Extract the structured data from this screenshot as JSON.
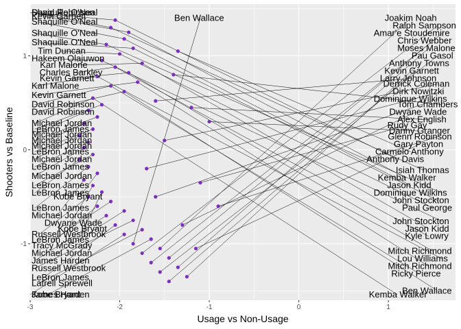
{
  "chart_data": {
    "type": "scatter",
    "title": "",
    "xlabel": "Usage vs Non-Usage",
    "ylabel": "Shooters vs Baseline",
    "xlim": [
      -3.0,
      1.75
    ],
    "ylim": [
      -1.6,
      1.55
    ],
    "x_ticks": [
      -3,
      -2,
      -1,
      0,
      1
    ],
    "y_ticks": [
      -1,
      0,
      1
    ],
    "x_tick_labels": [
      "-3",
      "-2",
      "-1",
      "0",
      "1"
    ],
    "y_tick_labels": [
      "-1",
      "0",
      "1"
    ],
    "grid": true,
    "colors": {
      "panel": "#ebebeb",
      "grid": "#ffffff",
      "point": "#7b2fbf",
      "segment": "#000000"
    },
    "points": [
      {
        "x": -2.05,
        "y": 1.38
      },
      {
        "x": -2.1,
        "y": 1.3
      },
      {
        "x": -1.9,
        "y": 1.25
      },
      {
        "x": -1.95,
        "y": 1.18
      },
      {
        "x": -2.15,
        "y": 1.12
      },
      {
        "x": -1.85,
        "y": 1.08
      },
      {
        "x": -2.0,
        "y": 1.02
      },
      {
        "x": -2.2,
        "y": 0.95
      },
      {
        "x": -1.75,
        "y": 0.92
      },
      {
        "x": -2.05,
        "y": 0.88
      },
      {
        "x": -1.9,
        "y": 0.82
      },
      {
        "x": -2.25,
        "y": 0.78
      },
      {
        "x": -1.8,
        "y": 0.72
      },
      {
        "x": -2.1,
        "y": 0.68
      },
      {
        "x": -1.95,
        "y": 0.62
      },
      {
        "x": -2.3,
        "y": 0.55
      },
      {
        "x": -2.2,
        "y": 0.48
      },
      {
        "x": -2.35,
        "y": 0.42
      },
      {
        "x": -2.25,
        "y": 0.35
      },
      {
        "x": -2.4,
        "y": 0.28
      },
      {
        "x": -2.3,
        "y": 0.22
      },
      {
        "x": -2.45,
        "y": 0.15
      },
      {
        "x": -2.35,
        "y": 0.08
      },
      {
        "x": -2.4,
        "y": 0.02
      },
      {
        "x": -2.3,
        "y": -0.05
      },
      {
        "x": -2.45,
        "y": -0.1
      },
      {
        "x": -2.35,
        "y": -0.18
      },
      {
        "x": -2.25,
        "y": -0.25
      },
      {
        "x": -2.4,
        "y": -0.32
      },
      {
        "x": -2.3,
        "y": -0.38
      },
      {
        "x": -2.2,
        "y": -0.45
      },
      {
        "x": -2.35,
        "y": -0.5
      },
      {
        "x": -2.1,
        "y": -0.55
      },
      {
        "x": -2.25,
        "y": -0.6
      },
      {
        "x": -1.95,
        "y": -0.65
      },
      {
        "x": -2.15,
        "y": -0.7
      },
      {
        "x": -1.85,
        "y": -0.75
      },
      {
        "x": -2.05,
        "y": -0.8
      },
      {
        "x": -1.75,
        "y": -0.85
      },
      {
        "x": -1.95,
        "y": -0.9
      },
      {
        "x": -1.65,
        "y": -0.95
      },
      {
        "x": -1.85,
        "y": -1.0
      },
      {
        "x": -1.55,
        "y": -1.05
      },
      {
        "x": -1.75,
        "y": -1.1
      },
      {
        "x": -1.45,
        "y": -1.15
      },
      {
        "x": -1.65,
        "y": -1.2
      },
      {
        "x": -1.35,
        "y": -1.25
      },
      {
        "x": -1.55,
        "y": -1.3
      },
      {
        "x": -1.25,
        "y": -1.35
      },
      {
        "x": -1.45,
        "y": -1.4
      },
      {
        "x": -1.6,
        "y": 0.52
      },
      {
        "x": -1.5,
        "y": 0.1
      },
      {
        "x": -1.7,
        "y": -0.2
      },
      {
        "x": -1.6,
        "y": -0.5
      },
      {
        "x": -1.4,
        "y": 0.8
      },
      {
        "x": -1.3,
        "y": -0.8
      },
      {
        "x": -1.2,
        "y": 0.45
      },
      {
        "x": -1.1,
        "y": -0.35
      },
      {
        "x": -1.0,
        "y": 0.3
      },
      {
        "x": -0.9,
        "y": -0.6
      },
      {
        "x": -1.15,
        "y": -1.05
      },
      {
        "x": -1.35,
        "y": 1.05
      }
    ],
    "labels": [
      {
        "text": "David Robinson",
        "x": -3.0,
        "y": 1.46
      },
      {
        "text": "Shaquille O'Neal",
        "x": -2.95,
        "y": 1.46
      },
      {
        "text": "Kevin Garnett",
        "x": -2.85,
        "y": 1.42
      },
      {
        "text": "Shaquille O'Neal",
        "x": -2.9,
        "y": 1.36
      },
      {
        "text": "Shaquille O'Neal",
        "x": -2.95,
        "y": 1.24
      },
      {
        "text": "Shaquille O'Neal",
        "x": -2.9,
        "y": 1.14
      },
      {
        "text": "Tim Duncan",
        "x": -2.65,
        "y": 1.05
      },
      {
        "text": "Hakeem Olajuwon",
        "x": -2.75,
        "y": 0.97
      },
      {
        "text": "Karl Malone",
        "x": -2.6,
        "y": 0.9
      },
      {
        "text": "Charles Barkley",
        "x": -2.5,
        "y": 0.82
      },
      {
        "text": "Kevin Garnett",
        "x": -2.55,
        "y": 0.76
      },
      {
        "text": "Karl Malone",
        "x": -2.95,
        "y": 0.68
      },
      {
        "text": "Kevin Garnett",
        "x": -2.95,
        "y": 0.58
      },
      {
        "text": "David Robinson",
        "x": -2.95,
        "y": 0.48
      },
      {
        "text": "David Robinson",
        "x": -2.95,
        "y": 0.4
      },
      {
        "text": "Michael Jordan",
        "x": -2.95,
        "y": 0.28
      },
      {
        "text": "LeBron James",
        "x": -2.95,
        "y": 0.22
      },
      {
        "text": "Michael Jordan",
        "x": -2.95,
        "y": 0.16
      },
      {
        "text": "Michael Jordan",
        "x": -2.95,
        "y": 0.1
      },
      {
        "text": "Michael Jordan",
        "x": -2.95,
        "y": 0.04
      },
      {
        "text": "LeBron James",
        "x": -2.95,
        "y": -0.02
      },
      {
        "text": "Michael Jordan",
        "x": -2.95,
        "y": -0.1
      },
      {
        "text": "LeBron James",
        "x": -2.95,
        "y": -0.18
      },
      {
        "text": "Michael Jordan",
        "x": -2.95,
        "y": -0.28
      },
      {
        "text": "LeBron James",
        "x": -2.95,
        "y": -0.38
      },
      {
        "text": "LeBron James",
        "x": -2.95,
        "y": -0.46
      },
      {
        "text": "LeBron James",
        "x": -2.95,
        "y": -0.62
      },
      {
        "text": "Kobe Bryant",
        "x": -2.45,
        "y": -0.5
      },
      {
        "text": "Michael Jordan",
        "x": -2.7,
        "y": -0.7
      },
      {
        "text": "Dwyane Wade",
        "x": -2.55,
        "y": -0.78
      },
      {
        "text": "Kobe Bryant",
        "x": -2.4,
        "y": -0.84
      },
      {
        "text": "Russell Westbrook",
        "x": -2.9,
        "y": -0.9
      },
      {
        "text": "LeBron James",
        "x": -2.75,
        "y": -0.96
      },
      {
        "text": "Tracy McGrady",
        "x": -2.8,
        "y": -1.02
      },
      {
        "text": "Michael Jordan",
        "x": -2.7,
        "y": -1.1
      },
      {
        "text": "James Harden",
        "x": -2.95,
        "y": -1.18
      },
      {
        "text": "Russell Westbrook",
        "x": -2.95,
        "y": -1.26
      },
      {
        "text": "LeBron James",
        "x": -2.85,
        "y": -1.36
      },
      {
        "text": "Latrell Sprewell",
        "x": -2.9,
        "y": -1.42
      },
      {
        "text": "James Harden",
        "x": -3.0,
        "y": -1.54
      },
      {
        "text": "Kobe Bryant",
        "x": -2.8,
        "y": -1.54
      },
      {
        "text": "Ben Wallace",
        "x": -1.1,
        "y": 1.4
      },
      {
        "text": "Joakim Noah",
        "x": 1.25,
        "y": 1.4
      },
      {
        "text": "Ralph Sampson",
        "x": 1.55,
        "y": 1.32
      },
      {
        "text": "Amar'e Stoudemire",
        "x": 1.6,
        "y": 1.24
      },
      {
        "text": "Chris Webber",
        "x": 1.5,
        "y": 1.16
      },
      {
        "text": "Moses Malone",
        "x": 1.45,
        "y": 1.08
      },
      {
        "text": "Pau Gasol",
        "x": 1.55,
        "y": 1.0
      },
      {
        "text": "Anthony Towns",
        "x": 1.35,
        "y": 0.92
      },
      {
        "text": "Kevin Garnett",
        "x": 1.3,
        "y": 0.84
      },
      {
        "text": "Larry Johnson",
        "x": 1.25,
        "y": 0.76
      },
      {
        "text": "Derrick Coleman",
        "x": 1.55,
        "y": 0.7
      },
      {
        "text": "Dirk Nowitzki",
        "x": 1.6,
        "y": 0.62
      },
      {
        "text": "Dominique Wilkins",
        "x": 1.55,
        "y": 0.54
      },
      {
        "text": "Tom Chambers",
        "x": 1.6,
        "y": 0.48
      },
      {
        "text": "Dwyane Wade",
        "x": 1.3,
        "y": 0.4
      },
      {
        "text": "Alex English",
        "x": 1.45,
        "y": 0.32
      },
      {
        "text": "Rudy Gay",
        "x": 1.2,
        "y": 0.26
      },
      {
        "text": "Danny Granger",
        "x": 1.35,
        "y": 0.2
      },
      {
        "text": "Glenn Robinson",
        "x": 1.55,
        "y": 0.14
      },
      {
        "text": "Gary Payton",
        "x": 1.35,
        "y": 0.06
      },
      {
        "text": "Carmelo Anthony",
        "x": 1.25,
        "y": -0.02
      },
      {
        "text": "Anthony Davis",
        "x": 1.1,
        "y": -0.1
      },
      {
        "text": "Isiah Thomas",
        "x": 1.4,
        "y": -0.22
      },
      {
        "text": "Kemba Walker",
        "x": 1.2,
        "y": -0.3
      },
      {
        "text": "Jason Kidd",
        "x": 1.25,
        "y": -0.38
      },
      {
        "text": "Dominique Wilkins",
        "x": 1.6,
        "y": -0.46
      },
      {
        "text": "John Stockton",
        "x": 1.55,
        "y": -0.54
      },
      {
        "text": "Paul George",
        "x": 1.5,
        "y": -0.62
      },
      {
        "text": "John Stockton",
        "x": 1.6,
        "y": -0.76
      },
      {
        "text": "Jason Kidd",
        "x": 1.45,
        "y": -0.84
      },
      {
        "text": "Kyle Lowry",
        "x": 1.45,
        "y": -0.92
      },
      {
        "text": "Mitch Richmond",
        "x": 1.5,
        "y": -1.08
      },
      {
        "text": "Lou Williams",
        "x": 1.6,
        "y": -1.16
      },
      {
        "text": "Mitch Richmond",
        "x": 1.45,
        "y": -1.24
      },
      {
        "text": "Ricky Pierce",
        "x": 1.35,
        "y": -1.32
      },
      {
        "text": "Ben Wallace",
        "x": 1.55,
        "y": -1.5
      },
      {
        "text": "Kemba Walker",
        "x": 1.1,
        "y": -1.54
      }
    ]
  }
}
